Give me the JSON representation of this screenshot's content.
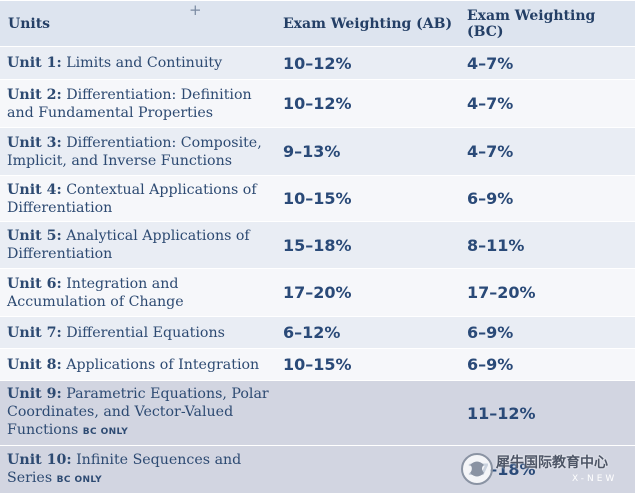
{
  "header": {
    "units": "Units",
    "ab": "Exam Weighting (AB)",
    "bc": "Exam Weighting (BC)"
  },
  "rows": [
    {
      "unit": "Unit 1:",
      "line1": "Limits and Continuity",
      "line2": "",
      "bc_only": "",
      "ab": "10–12%",
      "bc": "4–7%"
    },
    {
      "unit": "Unit 2:",
      "line1": "Differentiation: Definition",
      "line2": "and Fundamental Properties",
      "bc_only": "",
      "ab": "10–12%",
      "bc": "4–7%"
    },
    {
      "unit": "Unit 3:",
      "line1": "Differentiation: Composite,",
      "line2": "Implicit, and Inverse Functions",
      "bc_only": "",
      "ab": "9–13%",
      "bc": "4–7%"
    },
    {
      "unit": "Unit 4:",
      "line1": "Contextual Applications of",
      "line2": "Differentiation",
      "bc_only": "",
      "ab": "10–15%",
      "bc": "6–9%"
    },
    {
      "unit": "Unit 5:",
      "line1": "Analytical Applications of",
      "line2": "Differentiation",
      "bc_only": "",
      "ab": "15–18%",
      "bc": "8–11%"
    },
    {
      "unit": "Unit 6:",
      "line1": "Integration and",
      "line2": "Accumulation of Change",
      "bc_only": "",
      "ab": "17–20%",
      "bc": "17–20%"
    },
    {
      "unit": "Unit 7:",
      "line1": "Differential Equations",
      "line2": "",
      "bc_only": "",
      "ab": "6–12%",
      "bc": "6–9%"
    },
    {
      "unit": "Unit 8:",
      "line1": "Applications of Integration",
      "line2": "",
      "bc_only": "",
      "ab": "10–15%",
      "bc": "6–9%"
    },
    {
      "unit": "Unit 9:",
      "line1": "Parametric Equations, Polar",
      "line2": "Coordinates, and Vector-Valued",
      "line3": "Functions",
      "bc_only": "BC ONLY",
      "ab": "",
      "bc": "11–12%"
    },
    {
      "unit": "Unit 10:",
      "line1": "Infinite Sequences and",
      "line2": "Series",
      "bc_only": "BC ONLY",
      "ab": "",
      "bc": "17–18%"
    }
  ],
  "watermark": {
    "text": "犀牛国际教育中心",
    "sub": "X-NEW"
  }
}
